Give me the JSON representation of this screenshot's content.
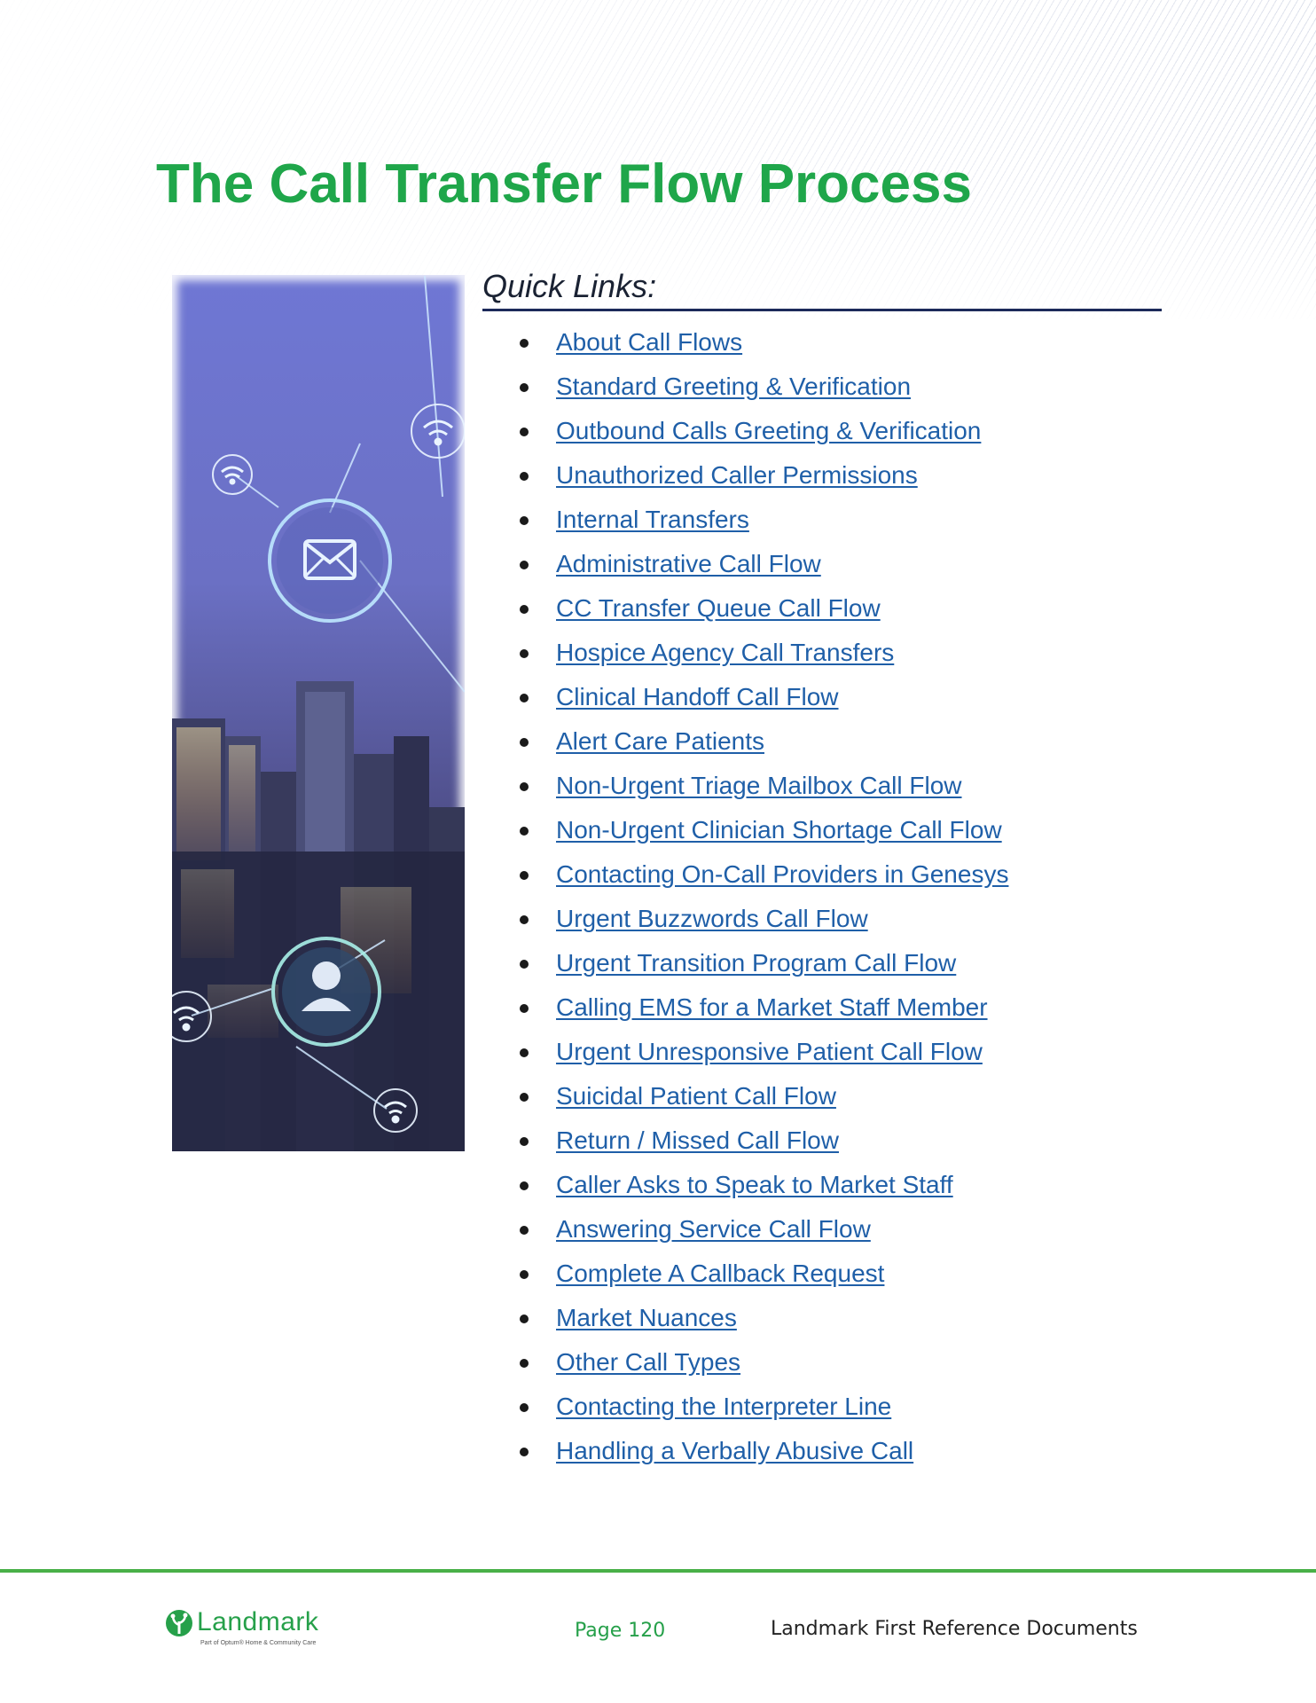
{
  "page": {
    "title": "The Call Transfer Flow Process",
    "accent_color": "#1fa64a",
    "link_color": "#1f5fa8"
  },
  "quick_links": {
    "heading": "Quick Links:",
    "items": [
      "About Call Flows",
      "Standard Greeting & Verification",
      "Outbound Calls Greeting & Verification",
      "Unauthorized Caller Permissions",
      "Internal Transfers",
      "Administrative Call Flow",
      "CC Transfer Queue Call Flow",
      "Hospice Agency Call Transfers",
      "Clinical Handoff Call Flow",
      "Alert Care Patients",
      "Non-Urgent Triage Mailbox Call Flow",
      "Non-Urgent Clinician Shortage Call Flow",
      "Contacting On-Call Providers in Genesys",
      "Urgent Buzzwords Call Flow",
      "Urgent Transition Program Call Flow",
      "Calling EMS for a Market Staff Member",
      "Urgent Unresponsive Patient Call Flow",
      "Suicidal Patient Call Flow",
      "Return / Missed Call Flow",
      "Caller Asks to Speak to Market Staff",
      "Answering Service Call Flow",
      "Complete A Callback Request",
      "Market Nuances",
      "Other Call Types",
      "Contacting the Interpreter Line",
      "Handling a Verbally Abusive Call"
    ]
  },
  "image": {
    "icons": [
      "envelope-icon",
      "person-icon",
      "wifi-icon"
    ]
  },
  "footer": {
    "logo_name": "Landmark",
    "logo_tagline": "Part of Optum® Home & Community Care",
    "page_label": "Page 120",
    "document_name": "Landmark First Reference Documents"
  }
}
